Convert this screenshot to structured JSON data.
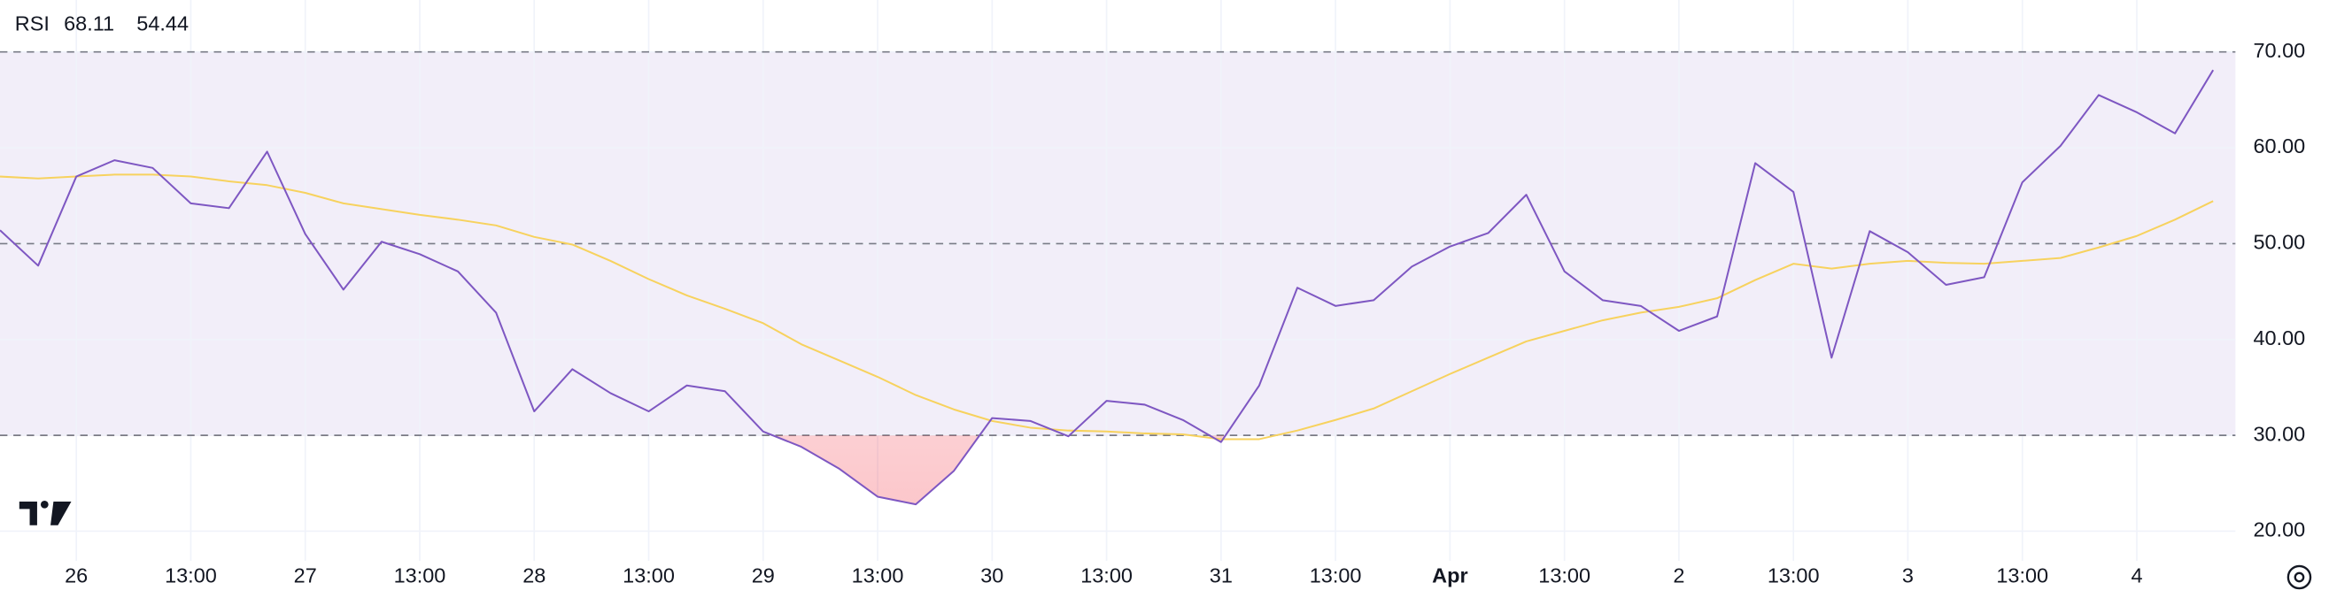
{
  "chart_data": {
    "type": "line",
    "title": "RSI",
    "categories": [
      null,
      null,
      "26",
      null,
      null,
      "13:00",
      null,
      null,
      "27",
      null,
      null,
      "13:00",
      null,
      null,
      "28",
      null,
      null,
      "13:00",
      null,
      null,
      "29",
      null,
      null,
      "13:00",
      null,
      null,
      "30",
      null,
      null,
      "13:00",
      null,
      null,
      "31",
      null,
      null,
      "13:00",
      null,
      null,
      "Apr",
      null,
      null,
      "13:00",
      null,
      null,
      "2",
      null,
      null,
      "13:00",
      null,
      null,
      "3",
      null,
      null,
      "13:00",
      null,
      null,
      "4",
      null,
      null
    ],
    "series": [
      {
        "color": "#7e57c2",
        "values": [
          51.4,
          47.7,
          57.0,
          58.7,
          57.9,
          54.2,
          53.7,
          59.6,
          51.0,
          45.2,
          50.2,
          48.9,
          47.1,
          42.8,
          32.5,
          36.9,
          34.4,
          32.5,
          35.2,
          34.6,
          30.4,
          28.8,
          26.5,
          23.6,
          22.8,
          26.3,
          31.8,
          31.5,
          29.9,
          33.6,
          33.2,
          31.6,
          29.3,
          35.2,
          45.4,
          43.5,
          44.1,
          47.6,
          49.7,
          51.1,
          55.1,
          47.1,
          44.1,
          43.5,
          40.9,
          42.4,
          58.4,
          55.4,
          38.1,
          51.3,
          49.1,
          45.7,
          46.5,
          56.4,
          60.2,
          65.5,
          63.7,
          61.5,
          68.11
        ]
      },
      {
        "color": "#f7d25e",
        "values": [
          57.0,
          56.8,
          57.0,
          57.2,
          57.2,
          57.0,
          56.5,
          56.1,
          55.3,
          54.2,
          53.6,
          53.0,
          52.5,
          51.9,
          50.7,
          49.9,
          48.2,
          46.3,
          44.6,
          43.2,
          41.7,
          39.5,
          37.8,
          36.1,
          34.2,
          32.7,
          31.5,
          30.8,
          30.5,
          30.4,
          30.2,
          30.1,
          29.6,
          29.6,
          30.5,
          31.6,
          32.8,
          34.6,
          36.4,
          38.1,
          39.8,
          40.9,
          42.0,
          42.8,
          43.4,
          44.3,
          46.2,
          47.9,
          47.4,
          47.9,
          48.2,
          48.0,
          47.9,
          48.2,
          48.5,
          49.6,
          50.8,
          52.5,
          54.44
        ]
      }
    ],
    "ylim": [
      18,
      73
    ],
    "yticks": [
      {
        "value": 20,
        "label": "20.00"
      },
      {
        "value": 30,
        "label": "30.00"
      },
      {
        "value": 40,
        "label": "40.00"
      },
      {
        "value": 50,
        "label": "50.00"
      },
      {
        "value": 60,
        "label": "60.00"
      },
      {
        "value": 70,
        "label": "70.00"
      }
    ],
    "reference_lines": [
      30,
      50,
      70
    ],
    "band_color": "#7e57c2",
    "oversold_color": "#f23645",
    "grid": true
  }
}
